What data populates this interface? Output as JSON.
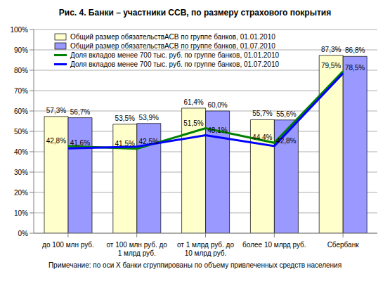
{
  "chart_data": {
    "type": "bar",
    "title": "Рис. 4. Банки – участники ССВ, по размеру страхового покрытия",
    "annotations": [
      "Примечание: по оси Х банки сгруппированы по объему привлеченных средств населения"
    ],
    "categories": [
      "до 100 млн руб.",
      "от 100 млн руб. до 1 млрд руб.",
      "от 1 млрд руб. до 10 млрд руб.",
      "более 10 млрд руб.",
      "Сбербанк"
    ],
    "series": [
      {
        "name": "Общий размер обязательствАСВ по группе банков, 01.01.2010",
        "type": "bar",
        "color": "#ffffcc",
        "values": [
          57.3,
          53.5,
          61.4,
          55.7,
          87.3
        ],
        "value_labels": [
          "57,3%",
          "53,5%",
          "61,4%",
          "55,7%",
          "87,3%"
        ]
      },
      {
        "name": "Общий размер обязательствАСВ по группе банков, 01.07.2010",
        "type": "bar",
        "color": "#9999ff",
        "values": [
          56.7,
          53.9,
          60.0,
          55.6,
          86.8
        ],
        "value_labels": [
          "56,7%",
          "53,9%",
          "60,0%",
          "55,6%",
          "86,8%"
        ]
      },
      {
        "name": "Доля вкладов менее 700 тыс. руб. по группе банков, 01.01.2010",
        "type": "line",
        "color": "#008000",
        "marker": "none",
        "values": [
          42.8,
          41.5,
          51.5,
          44.4,
          79.5
        ],
        "value_labels": [
          "42,8%",
          "41,5%",
          "51,5%",
          "44,4%",
          "79,5%"
        ]
      },
      {
        "name": "Доля вкладов менее 700 тыс. руб. по группе банков, 01.07.2010",
        "type": "line",
        "color": "#0000ff",
        "marker": "none",
        "values": [
          41.6,
          42.5,
          48.1,
          42.8,
          78.5
        ],
        "value_labels": [
          "41,6%",
          "42,5%",
          "48,1%",
          "42,8%",
          "78,5%"
        ]
      }
    ],
    "ylim": [
      0,
      100
    ],
    "yticks": [
      {
        "value": 0,
        "label": "0%"
      },
      {
        "value": 10,
        "label": "10%"
      },
      {
        "value": 20,
        "label": "20%"
      },
      {
        "value": 30,
        "label": "30%"
      },
      {
        "value": 40,
        "label": "40%"
      },
      {
        "value": 50,
        "label": "50%"
      },
      {
        "value": 60,
        "label": "60%"
      },
      {
        "value": 70,
        "label": "70%"
      },
      {
        "value": 80,
        "label": "80%"
      },
      {
        "value": 90,
        "label": "90%"
      },
      {
        "value": 100,
        "label": "100%"
      }
    ],
    "grid": true,
    "legend": "upper left",
    "data_labels": true
  }
}
